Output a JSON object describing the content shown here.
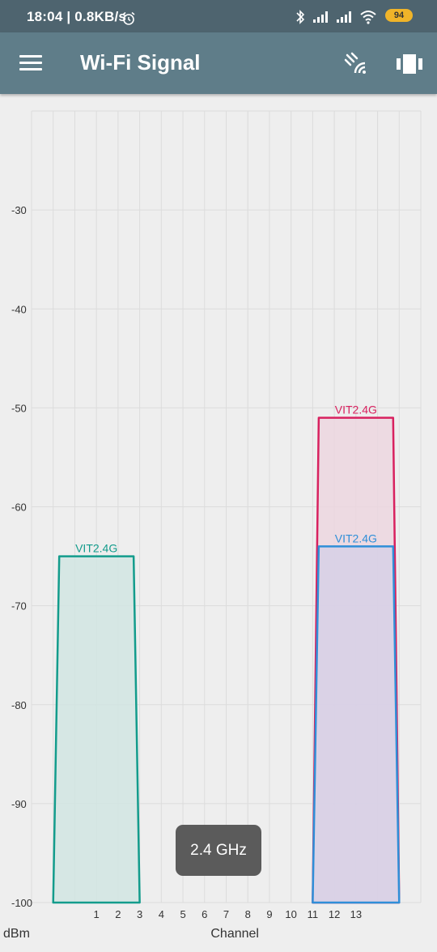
{
  "status_bar": {
    "time": "18:04 | 0.8KB/s",
    "icons": [
      "alarm-icon",
      "bluetooth-icon",
      "signal-icon",
      "signal-icon",
      "wifi-icon"
    ],
    "battery": "94"
  },
  "app_bar": {
    "title": "Wi-Fi Signal",
    "menu_icon": "hamburger-menu-icon",
    "scan_icon": "wifi-scan-icon",
    "view_icon": "view-switch-icon"
  },
  "toast": "2.4 GHz",
  "chart_data": {
    "type": "area",
    "title": "",
    "xlabel": "Channel",
    "ylabel": "dBm",
    "xlim": [
      -2,
      16
    ],
    "ylim": [
      -100,
      -20
    ],
    "y_ticks": [
      -30,
      -40,
      -50,
      -60,
      -70,
      -80,
      -90,
      -100
    ],
    "x_ticks": [
      1,
      2,
      3,
      4,
      5,
      6,
      7,
      8,
      9,
      10,
      11,
      12,
      13
    ],
    "grid": true,
    "series": [
      {
        "name": "VIT2.4G",
        "color": "#139c8c",
        "fill": "#d1e5e2",
        "channel": 1,
        "signal": -65,
        "width_channels": 4
      },
      {
        "name": "VIT2.4G",
        "color": "#d8215f",
        "fill": "#ecd6df",
        "channel": 13,
        "signal": -51,
        "width_channels": 4
      },
      {
        "name": "VIT2.4G",
        "color": "#2f8fd8",
        "fill": "#d6d0e6",
        "channel": 13,
        "signal": -64,
        "width_channels": 4
      }
    ]
  }
}
